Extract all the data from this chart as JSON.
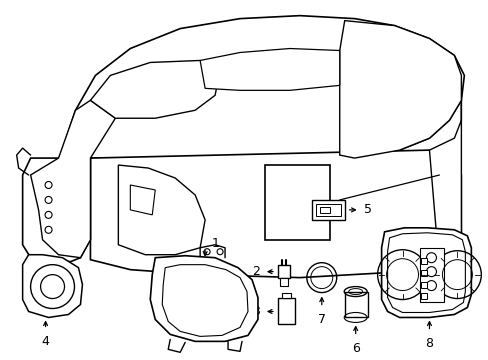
{
  "title": "",
  "bg_color": "#ffffff",
  "line_color": "#000000",
  "label_color": "#000000",
  "fig_width": 4.89,
  "fig_height": 3.6,
  "dpi": 100
}
